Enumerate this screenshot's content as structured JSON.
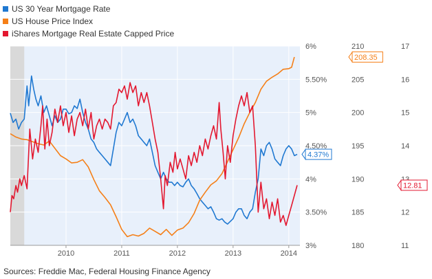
{
  "legend": [
    {
      "label": "US 30 Year Mortgage Rate",
      "color": "#1f78d1"
    },
    {
      "label": "US House Price Index",
      "color": "#f57f17"
    },
    {
      "label": "iShares Mortgage Real Estate Capped Price",
      "color": "#e3172f"
    }
  ],
  "source": "Sources: Freddie Mac, Federal Housing Finance Agency",
  "chart_data": {
    "type": "line",
    "x_ticks": [
      "2010",
      "2011",
      "2012",
      "2013",
      "2014"
    ],
    "xlim": [
      2009.0,
      2014.2
    ],
    "shaded_until": 2009.25,
    "axes": [
      {
        "id": "rate",
        "ticks": [
          "6%",
          "5.50%",
          "5%",
          "4.50%",
          "4%",
          "3.50%",
          "3%"
        ],
        "ylim": [
          3,
          6
        ]
      },
      {
        "id": "hpi",
        "ticks": [
          "210",
          "205",
          "200",
          "195",
          "190",
          "185",
          "180"
        ],
        "ylim": [
          180,
          210
        ]
      },
      {
        "id": "price",
        "ticks": [
          "17",
          "16",
          "15",
          "14",
          "13",
          "12",
          "11"
        ],
        "ylim": [
          11,
          17
        ]
      }
    ],
    "series": [
      {
        "name": "US 30 Year Mortgage Rate",
        "axis": "rate",
        "color": "#1f78d1",
        "last_label": "4.37%",
        "points": [
          [
            2009.0,
            4.99
          ],
          [
            2009.05,
            4.85
          ],
          [
            2009.1,
            4.9
          ],
          [
            2009.15,
            4.75
          ],
          [
            2009.2,
            4.85
          ],
          [
            2009.25,
            4.9
          ],
          [
            2009.3,
            5.4
          ],
          [
            2009.33,
            5.1
          ],
          [
            2009.38,
            5.55
          ],
          [
            2009.42,
            5.35
          ],
          [
            2009.46,
            5.2
          ],
          [
            2009.5,
            5.1
          ],
          [
            2009.55,
            5.25
          ],
          [
            2009.6,
            5.0
          ],
          [
            2009.65,
            5.1
          ],
          [
            2009.7,
            4.95
          ],
          [
            2009.75,
            4.8
          ],
          [
            2009.8,
            4.95
          ],
          [
            2009.85,
            4.85
          ],
          [
            2009.9,
            4.9
          ],
          [
            2009.95,
            5.05
          ],
          [
            2010.0,
            5.05
          ],
          [
            2010.05,
            4.98
          ],
          [
            2010.1,
            5.0
          ],
          [
            2010.15,
            5.1
          ],
          [
            2010.2,
            5.06
          ],
          [
            2010.25,
            5.2
          ],
          [
            2010.3,
            5.0
          ],
          [
            2010.35,
            4.85
          ],
          [
            2010.4,
            4.75
          ],
          [
            2010.45,
            4.6
          ],
          [
            2010.5,
            4.55
          ],
          [
            2010.55,
            4.45
          ],
          [
            2010.6,
            4.4
          ],
          [
            2010.65,
            4.35
          ],
          [
            2010.7,
            4.3
          ],
          [
            2010.75,
            4.25
          ],
          [
            2010.8,
            4.2
          ],
          [
            2010.85,
            4.45
          ],
          [
            2010.9,
            4.7
          ],
          [
            2010.95,
            4.85
          ],
          [
            2011.0,
            4.8
          ],
          [
            2011.05,
            4.9
          ],
          [
            2011.1,
            5.0
          ],
          [
            2011.15,
            4.85
          ],
          [
            2011.2,
            4.9
          ],
          [
            2011.25,
            4.8
          ],
          [
            2011.3,
            4.65
          ],
          [
            2011.35,
            4.6
          ],
          [
            2011.4,
            4.55
          ],
          [
            2011.45,
            4.5
          ],
          [
            2011.5,
            4.6
          ],
          [
            2011.55,
            4.4
          ],
          [
            2011.6,
            4.2
          ],
          [
            2011.65,
            4.1
          ],
          [
            2011.7,
            4.0
          ],
          [
            2011.75,
            4.1
          ],
          [
            2011.8,
            4.0
          ],
          [
            2011.85,
            3.95
          ],
          [
            2011.9,
            3.95
          ],
          [
            2011.95,
            3.9
          ],
          [
            2012.0,
            3.95
          ],
          [
            2012.05,
            3.9
          ],
          [
            2012.1,
            3.88
          ],
          [
            2012.15,
            3.95
          ],
          [
            2012.2,
            4.0
          ],
          [
            2012.25,
            3.9
          ],
          [
            2012.3,
            3.85
          ],
          [
            2012.35,
            3.78
          ],
          [
            2012.4,
            3.7
          ],
          [
            2012.45,
            3.65
          ],
          [
            2012.5,
            3.6
          ],
          [
            2012.55,
            3.55
          ],
          [
            2012.6,
            3.58
          ],
          [
            2012.65,
            3.5
          ],
          [
            2012.7,
            3.4
          ],
          [
            2012.75,
            3.38
          ],
          [
            2012.8,
            3.4
          ],
          [
            2012.85,
            3.35
          ],
          [
            2012.9,
            3.32
          ],
          [
            2012.95,
            3.36
          ],
          [
            2013.0,
            3.4
          ],
          [
            2013.05,
            3.5
          ],
          [
            2013.1,
            3.55
          ],
          [
            2013.15,
            3.55
          ],
          [
            2013.2,
            3.45
          ],
          [
            2013.25,
            3.4
          ],
          [
            2013.3,
            3.5
          ],
          [
            2013.35,
            3.55
          ],
          [
            2013.4,
            3.8
          ],
          [
            2013.45,
            4.0
          ],
          [
            2013.5,
            4.45
          ],
          [
            2013.55,
            4.35
          ],
          [
            2013.6,
            4.5
          ],
          [
            2013.65,
            4.55
          ],
          [
            2013.7,
            4.45
          ],
          [
            2013.75,
            4.3
          ],
          [
            2013.8,
            4.25
          ],
          [
            2013.85,
            4.2
          ],
          [
            2013.9,
            4.35
          ],
          [
            2013.95,
            4.45
          ],
          [
            2014.0,
            4.5
          ],
          [
            2014.05,
            4.45
          ],
          [
            2014.1,
            4.35
          ],
          [
            2014.15,
            4.37
          ]
        ]
      },
      {
        "name": "US House Price Index",
        "axis": "hpi",
        "color": "#f57f17",
        "last_label": "208.35",
        "points": [
          [
            2009.0,
            196.8
          ],
          [
            2009.1,
            196.3
          ],
          [
            2009.2,
            196.0
          ],
          [
            2009.3,
            195.9
          ],
          [
            2009.4,
            195.6
          ],
          [
            2009.5,
            195.3
          ],
          [
            2009.6,
            195.1
          ],
          [
            2009.7,
            195.7
          ],
          [
            2009.8,
            194.6
          ],
          [
            2009.9,
            193.5
          ],
          [
            2010.0,
            193.0
          ],
          [
            2010.1,
            192.4
          ],
          [
            2010.2,
            192.5
          ],
          [
            2010.3,
            192.9
          ],
          [
            2010.4,
            191.8
          ],
          [
            2010.5,
            189.9
          ],
          [
            2010.6,
            188.2
          ],
          [
            2010.7,
            187.2
          ],
          [
            2010.8,
            186.1
          ],
          [
            2010.9,
            184.3
          ],
          [
            2011.0,
            182.4
          ],
          [
            2011.1,
            181.3
          ],
          [
            2011.2,
            181.6
          ],
          [
            2011.3,
            181.4
          ],
          [
            2011.4,
            181.8
          ],
          [
            2011.5,
            182.6
          ],
          [
            2011.6,
            182.1
          ],
          [
            2011.7,
            181.6
          ],
          [
            2011.8,
            182.4
          ],
          [
            2011.9,
            181.5
          ],
          [
            2012.0,
            182.3
          ],
          [
            2012.1,
            182.6
          ],
          [
            2012.2,
            183.4
          ],
          [
            2012.3,
            184.8
          ],
          [
            2012.4,
            186.8
          ],
          [
            2012.5,
            188.0
          ],
          [
            2012.6,
            189.1
          ],
          [
            2012.7,
            189.7
          ],
          [
            2012.8,
            190.8
          ],
          [
            2012.9,
            192.6
          ],
          [
            2013.0,
            194.4
          ],
          [
            2013.1,
            196.2
          ],
          [
            2013.2,
            198.3
          ],
          [
            2013.3,
            200.0
          ],
          [
            2013.4,
            201.5
          ],
          [
            2013.5,
            203.5
          ],
          [
            2013.6,
            204.7
          ],
          [
            2013.7,
            205.3
          ],
          [
            2013.8,
            205.8
          ],
          [
            2013.9,
            206.5
          ],
          [
            2014.0,
            206.6
          ],
          [
            2014.05,
            206.8
          ],
          [
            2014.1,
            208.35
          ]
        ]
      },
      {
        "name": "iShares Mortgage Real Estate Capped Price",
        "axis": "price",
        "color": "#e3172f",
        "last_label": "12.81",
        "points": [
          [
            2009.0,
            12.0
          ],
          [
            2009.03,
            12.5
          ],
          [
            2009.06,
            12.4
          ],
          [
            2009.1,
            12.8
          ],
          [
            2009.13,
            12.6
          ],
          [
            2009.17,
            13.0
          ],
          [
            2009.2,
            12.8
          ],
          [
            2009.25,
            13.1
          ],
          [
            2009.3,
            12.7
          ],
          [
            2009.35,
            14.5
          ],
          [
            2009.4,
            13.6
          ],
          [
            2009.45,
            14.2
          ],
          [
            2009.5,
            13.8
          ],
          [
            2009.55,
            14.6
          ],
          [
            2009.58,
            15.2
          ],
          [
            2009.62,
            13.9
          ],
          [
            2009.66,
            14.8
          ],
          [
            2009.7,
            14.0
          ],
          [
            2009.75,
            14.4
          ],
          [
            2009.8,
            15.1
          ],
          [
            2009.85,
            14.7
          ],
          [
            2009.9,
            15.2
          ],
          [
            2009.95,
            14.6
          ],
          [
            2010.0,
            15.0
          ],
          [
            2010.05,
            14.4
          ],
          [
            2010.1,
            14.9
          ],
          [
            2010.15,
            14.3
          ],
          [
            2010.2,
            14.8
          ],
          [
            2010.25,
            15.0
          ],
          [
            2010.3,
            14.6
          ],
          [
            2010.35,
            15.1
          ],
          [
            2010.4,
            14.5
          ],
          [
            2010.45,
            15.0
          ],
          [
            2010.5,
            14.2
          ],
          [
            2010.55,
            14.6
          ],
          [
            2010.6,
            14.8
          ],
          [
            2010.65,
            14.5
          ],
          [
            2010.7,
            14.8
          ],
          [
            2010.75,
            14.7
          ],
          [
            2010.8,
            14.5
          ],
          [
            2010.85,
            15.2
          ],
          [
            2010.9,
            15.3
          ],
          [
            2010.95,
            15.7
          ],
          [
            2011.0,
            15.6
          ],
          [
            2011.05,
            15.8
          ],
          [
            2011.1,
            15.4
          ],
          [
            2011.15,
            15.9
          ],
          [
            2011.2,
            15.6
          ],
          [
            2011.25,
            15.8
          ],
          [
            2011.3,
            15.2
          ],
          [
            2011.35,
            15.6
          ],
          [
            2011.4,
            15.3
          ],
          [
            2011.45,
            15.6
          ],
          [
            2011.5,
            15.2
          ],
          [
            2011.55,
            14.7
          ],
          [
            2011.6,
            14.2
          ],
          [
            2011.65,
            13.8
          ],
          [
            2011.7,
            13.0
          ],
          [
            2011.75,
            12.1
          ],
          [
            2011.78,
            13.1
          ],
          [
            2011.82,
            12.8
          ],
          [
            2011.87,
            13.5
          ],
          [
            2011.92,
            13.2
          ],
          [
            2011.96,
            13.8
          ],
          [
            2012.0,
            13.3
          ],
          [
            2012.05,
            13.6
          ],
          [
            2012.1,
            13.3
          ],
          [
            2012.15,
            13.0
          ],
          [
            2012.2,
            13.7
          ],
          [
            2012.25,
            13.4
          ],
          [
            2012.3,
            13.8
          ],
          [
            2012.35,
            13.5
          ],
          [
            2012.4,
            14.0
          ],
          [
            2012.45,
            13.7
          ],
          [
            2012.5,
            14.2
          ],
          [
            2012.55,
            13.9
          ],
          [
            2012.6,
            14.3
          ],
          [
            2012.65,
            14.6
          ],
          [
            2012.7,
            14.2
          ],
          [
            2012.75,
            15.3
          ],
          [
            2012.78,
            14.5
          ],
          [
            2012.82,
            13.8
          ],
          [
            2012.86,
            13.0
          ],
          [
            2012.9,
            14.0
          ],
          [
            2012.95,
            13.5
          ],
          [
            2013.0,
            14.3
          ],
          [
            2013.05,
            14.8
          ],
          [
            2013.1,
            15.2
          ],
          [
            2013.15,
            15.5
          ],
          [
            2013.2,
            15.2
          ],
          [
            2013.25,
            15.6
          ],
          [
            2013.3,
            15.0
          ],
          [
            2013.35,
            15.2
          ],
          [
            2013.4,
            14.0
          ],
          [
            2013.45,
            12.0
          ],
          [
            2013.5,
            12.9
          ],
          [
            2013.55,
            12.1
          ],
          [
            2013.6,
            12.4
          ],
          [
            2013.65,
            11.8
          ],
          [
            2013.7,
            12.3
          ],
          [
            2013.75,
            11.9
          ],
          [
            2013.8,
            12.4
          ],
          [
            2013.85,
            11.7
          ],
          [
            2013.9,
            11.9
          ],
          [
            2013.95,
            11.6
          ],
          [
            2014.0,
            11.9
          ],
          [
            2014.05,
            12.2
          ],
          [
            2014.1,
            12.5
          ],
          [
            2014.15,
            12.81
          ]
        ]
      }
    ]
  }
}
